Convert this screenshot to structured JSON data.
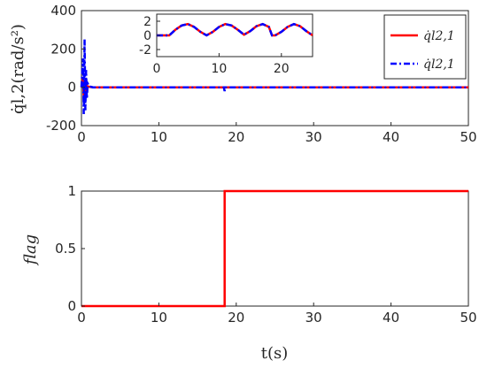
{
  "chart_data": [
    {
      "type": "line",
      "ylabel": "q̇l,2(rad/s²)",
      "xlim": [
        0,
        50
      ],
      "ylim": [
        -200,
        400
      ],
      "x_ticks": [
        "0",
        "10",
        "20",
        "30",
        "40",
        "50"
      ],
      "y_ticks": [
        "-200",
        "0",
        "200",
        "400"
      ],
      "legend": {
        "placement": "top-right"
      },
      "series": [
        {
          "name": "q̇l2,1",
          "style": "solid",
          "color": "#ff0000",
          "x": [
            0,
            0.2,
            0.3,
            0.4,
            0.5,
            0.6,
            0.7,
            0.8,
            1.0,
            1.5,
            2,
            5,
            10,
            15,
            18.4,
            18.6,
            20,
            25,
            30,
            35,
            40,
            45,
            50
          ],
          "y": [
            0,
            50,
            -60,
            40,
            -30,
            20,
            -10,
            5,
            2,
            0,
            0,
            0,
            0,
            0,
            0,
            0,
            0,
            0,
            0,
            0,
            0,
            0,
            0
          ]
        },
        {
          "name": "q̇l2,1",
          "style": "dash-dot",
          "color": "#0000ff",
          "x": [
            0,
            0.2,
            0.3,
            0.4,
            0.5,
            0.6,
            0.7,
            0.8,
            1.0,
            1.5,
            2,
            5,
            10,
            15,
            18.4,
            18.5,
            18.6,
            20,
            25,
            30,
            35,
            40,
            45,
            50
          ],
          "y": [
            0,
            150,
            -140,
            250,
            -120,
            90,
            -60,
            20,
            5,
            0,
            0,
            0,
            0,
            0,
            0,
            -20,
            0,
            0,
            0,
            0,
            0,
            0,
            0,
            0
          ]
        }
      ]
    },
    {
      "type": "line",
      "role": "inset",
      "xlim": [
        0,
        25
      ],
      "ylim": [
        -3,
        3
      ],
      "x_ticks": [
        "0",
        "10",
        "20"
      ],
      "y_ticks": [
        "-2",
        "0",
        "2"
      ],
      "series": [
        {
          "style": "solid",
          "color": "#ff0000",
          "x": [
            0,
            0.5,
            1,
            1.5,
            2,
            3,
            4,
            5,
            6,
            7,
            8,
            9,
            10,
            11,
            12,
            13,
            14,
            15,
            16,
            17,
            18,
            18.5,
            19,
            20,
            21,
            22,
            23,
            24,
            25
          ],
          "y": [
            0,
            0,
            0,
            0,
            0,
            0.8,
            1.4,
            1.6,
            1.2,
            0.5,
            0,
            0.5,
            1.2,
            1.6,
            1.4,
            0.8,
            0.1,
            0.6,
            1.3,
            1.6,
            1.2,
            0,
            0,
            0.5,
            1.2,
            1.6,
            1.3,
            0.6,
            0
          ]
        },
        {
          "style": "dash-dot",
          "color": "#0000ff",
          "x": [
            0,
            0.5,
            1,
            1.5,
            2,
            3,
            4,
            5,
            6,
            7,
            8,
            9,
            10,
            11,
            12,
            13,
            14,
            15,
            16,
            17,
            18,
            18.5,
            19,
            20,
            21,
            22,
            23,
            24,
            25
          ],
          "y": [
            0,
            0,
            0,
            0,
            0,
            0.8,
            1.4,
            1.6,
            1.2,
            0.5,
            0,
            0.5,
            1.2,
            1.6,
            1.4,
            0.8,
            0.1,
            0.6,
            1.3,
            1.6,
            1.2,
            0,
            0,
            0.5,
            1.2,
            1.6,
            1.3,
            0.6,
            0
          ]
        }
      ]
    },
    {
      "type": "line",
      "xlabel": "t(s)",
      "ylabel": "flag",
      "xlim": [
        0,
        50
      ],
      "ylim": [
        0,
        1
      ],
      "x_ticks": [
        "0",
        "10",
        "20",
        "30",
        "40",
        "50"
      ],
      "y_ticks": [
        "0",
        "0.5",
        "1"
      ],
      "series": [
        {
          "style": "solid",
          "color": "#ff0000",
          "x": [
            0,
            18.5,
            18.5,
            50
          ],
          "y": [
            0,
            0,
            1,
            1
          ]
        }
      ]
    }
  ]
}
